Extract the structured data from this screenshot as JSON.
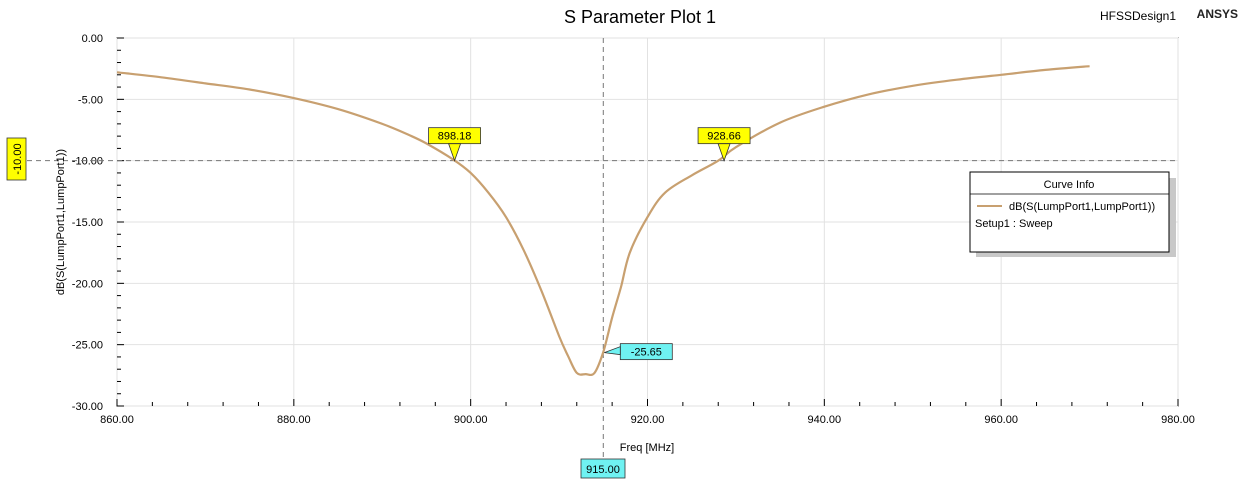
{
  "header": {
    "title": "S Parameter Plot 1",
    "design_name": "HFSSDesign1",
    "brand": "ANSYS"
  },
  "legend": {
    "title": "Curve Info",
    "series_label": "dB(S(LumpPort1,LumpPort1))",
    "setup_label": "Setup1 : Sweep"
  },
  "chart_data": {
    "type": "line",
    "title": "S Parameter Plot 1",
    "xlabel": "Freq [MHz]",
    "ylabel": "dB(S(LumpPort1,LumpPort1))",
    "xlim": [
      860,
      980
    ],
    "ylim": [
      -30,
      0
    ],
    "x_ticks": [
      "860.00",
      "880.00",
      "900.00",
      "920.00",
      "940.00",
      "960.00",
      "980.00"
    ],
    "y_ticks": [
      "0.00",
      "-5.00",
      "-10.00",
      "-15.00",
      "-20.00",
      "-25.00",
      "-30.00"
    ],
    "grid": true,
    "legend_position": "right",
    "series": [
      {
        "name": "dB(S(LumpPort1,LumpPort1))",
        "color": "#c8a070",
        "x": [
          860,
          865,
          870,
          875,
          880,
          885,
          890,
          893,
          895,
          898,
          900,
          902,
          904,
          906,
          908,
          910,
          911,
          912,
          913,
          914,
          915,
          916,
          917,
          918,
          920,
          922,
          925,
          928,
          930,
          935,
          940,
          945,
          950,
          955,
          960,
          965,
          970
        ],
        "y": [
          -2.8,
          -3.2,
          -3.7,
          -4.2,
          -4.9,
          -5.8,
          -7.0,
          -7.9,
          -8.6,
          -9.9,
          -11.0,
          -12.6,
          -14.6,
          -17.3,
          -20.6,
          -24.3,
          -25.9,
          -27.3,
          -27.4,
          -27.3,
          -25.6,
          -22.8,
          -20.3,
          -17.5,
          -14.6,
          -12.6,
          -11.2,
          -10.0,
          -8.9,
          -6.9,
          -5.6,
          -4.6,
          -3.9,
          -3.4,
          -3.0,
          -2.6,
          -2.3
        ]
      }
    ],
    "markers": [
      {
        "label": "898.18",
        "x": 898.18,
        "y": -10.0,
        "style": "yellow"
      },
      {
        "label": "928.66",
        "x": 928.66,
        "y": -10.0,
        "style": "yellow"
      },
      {
        "label": "-25.65",
        "x": 915.0,
        "y": -25.65,
        "style": "cyan"
      }
    ],
    "crosshair": {
      "x": 915.0,
      "x_label": "915.00",
      "y": -10.0,
      "y_label": "-10.00"
    }
  }
}
